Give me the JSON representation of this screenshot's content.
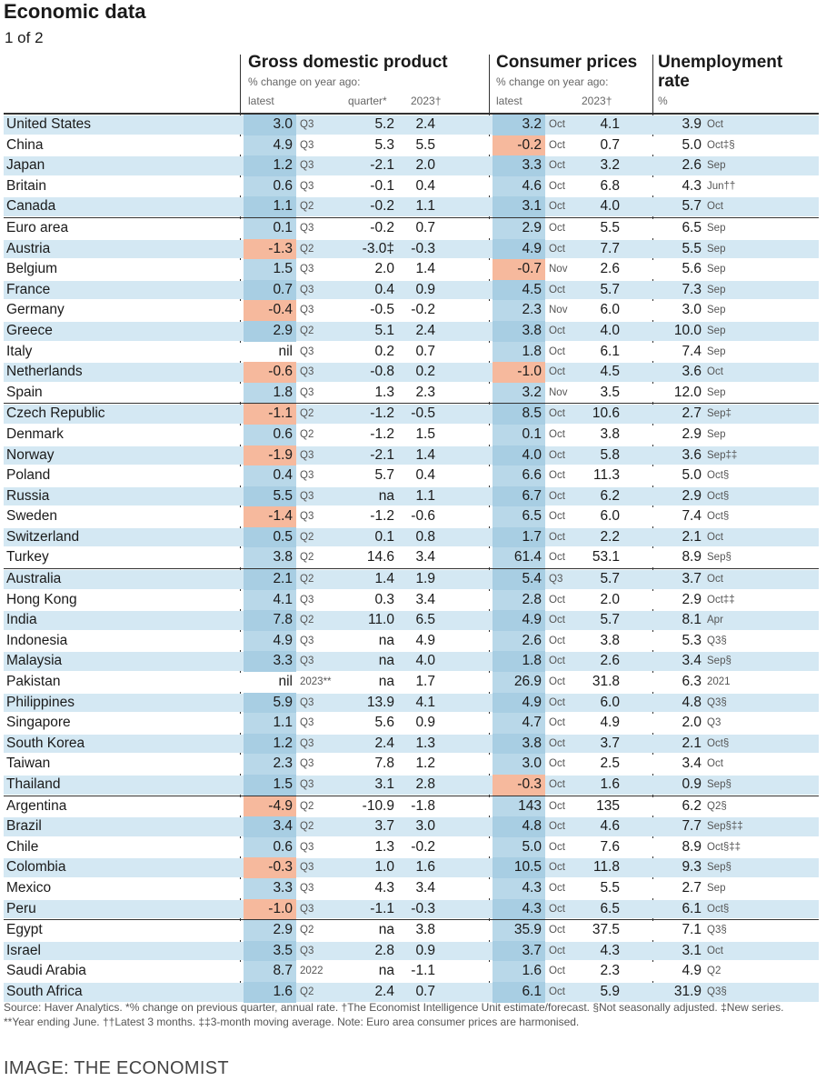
{
  "title": "Economic data",
  "subtitle": "1 of 2",
  "headers": {
    "gdp": "Gross domestic product",
    "gdp_sub": "% change on year ago:",
    "gdp_latest": "latest",
    "gdp_quarter": "quarter*",
    "gdp_2023": "2023†",
    "cpi": "Consumer prices",
    "cpi_sub": "% change on year ago:",
    "cpi_latest": "latest",
    "cpi_2023": "2023†",
    "unemp_line1": "Unemployment",
    "unemp_line2": "rate",
    "unemp_sub": "%"
  },
  "rows": [
    {
      "c": "United States",
      "g": "3.0",
      "gp": "Q3",
      "q": "5.2",
      "g23": "2.4",
      "p": "3.2",
      "pp": "Oct",
      "p23": "4.1",
      "u": "3.9",
      "up": "Oct"
    },
    {
      "c": "China",
      "g": "4.9",
      "gp": "Q3",
      "q": "5.3",
      "g23": "5.5",
      "p": "-0.2",
      "pp": "Oct",
      "p23": "0.7",
      "u": "5.0",
      "up": "Oct‡§"
    },
    {
      "c": "Japan",
      "g": "1.2",
      "gp": "Q3",
      "q": "-2.1",
      "g23": "2.0",
      "p": "3.3",
      "pp": "Oct",
      "p23": "3.2",
      "u": "2.6",
      "up": "Sep"
    },
    {
      "c": "Britain",
      "g": "0.6",
      "gp": "Q3",
      "q": "-0.1",
      "g23": "0.4",
      "p": "4.6",
      "pp": "Oct",
      "p23": "6.8",
      "u": "4.3",
      "up": "Jun††"
    },
    {
      "c": "Canada",
      "g": "1.1",
      "gp": "Q2",
      "q": "-0.2",
      "g23": "1.1",
      "p": "3.1",
      "pp": "Oct",
      "p23": "4.0",
      "u": "5.7",
      "up": "Oct"
    },
    {
      "c": "Euro area",
      "g": "0.1",
      "gp": "Q3",
      "q": "-0.2",
      "g23": "0.7",
      "p": "2.9",
      "pp": "Oct",
      "p23": "5.5",
      "u": "6.5",
      "up": "Sep"
    },
    {
      "c": "Austria",
      "g": "-1.3",
      "gp": "Q2",
      "q": "-3.0‡",
      "g23": "-0.3",
      "p": "4.9",
      "pp": "Oct",
      "p23": "7.7",
      "u": "5.5",
      "up": "Sep"
    },
    {
      "c": "Belgium",
      "g": "1.5",
      "gp": "Q3",
      "q": "2.0",
      "g23": "1.4",
      "p": "-0.7",
      "pp": "Nov",
      "p23": "2.6",
      "u": "5.6",
      "up": "Sep"
    },
    {
      "c": "France",
      "g": "0.7",
      "gp": "Q3",
      "q": "0.4",
      "g23": "0.9",
      "p": "4.5",
      "pp": "Oct",
      "p23": "5.7",
      "u": "7.3",
      "up": "Sep"
    },
    {
      "c": "Germany",
      "g": "-0.4",
      "gp": "Q3",
      "q": "-0.5",
      "g23": "-0.2",
      "p": "2.3",
      "pp": "Nov",
      "p23": "6.0",
      "u": "3.0",
      "up": "Sep"
    },
    {
      "c": "Greece",
      "g": "2.9",
      "gp": "Q2",
      "q": "5.1",
      "g23": "2.4",
      "p": "3.8",
      "pp": "Oct",
      "p23": "4.0",
      "u": "10.0",
      "up": "Sep"
    },
    {
      "c": "Italy",
      "g": "nil",
      "gp": "Q3",
      "q": "0.2",
      "g23": "0.7",
      "p": "1.8",
      "pp": "Oct",
      "p23": "6.1",
      "u": "7.4",
      "up": "Sep"
    },
    {
      "c": "Netherlands",
      "g": "-0.6",
      "gp": "Q3",
      "q": "-0.8",
      "g23": "0.2",
      "p": "-1.0",
      "pp": "Oct",
      "p23": "4.5",
      "u": "3.6",
      "up": "Oct"
    },
    {
      "c": "Spain",
      "g": "1.8",
      "gp": "Q3",
      "q": "1.3",
      "g23": "2.3",
      "p": "3.2",
      "pp": "Nov",
      "p23": "3.5",
      "u": "12.0",
      "up": "Sep"
    },
    {
      "c": "Czech Republic",
      "g": "-1.1",
      "gp": "Q2",
      "q": "-1.2",
      "g23": "-0.5",
      "p": "8.5",
      "pp": "Oct",
      "p23": "10.6",
      "u": "2.7",
      "up": "Sep‡"
    },
    {
      "c": "Denmark",
      "g": "0.6",
      "gp": "Q2",
      "q": "-1.2",
      "g23": "1.5",
      "p": "0.1",
      "pp": "Oct",
      "p23": "3.8",
      "u": "2.9",
      "up": "Sep"
    },
    {
      "c": "Norway",
      "g": "-1.9",
      "gp": "Q3",
      "q": "-2.1",
      "g23": "1.4",
      "p": "4.0",
      "pp": "Oct",
      "p23": "5.8",
      "u": "3.6",
      "up": "Sep‡‡"
    },
    {
      "c": "Poland",
      "g": "0.4",
      "gp": "Q3",
      "q": "5.7",
      "g23": "0.4",
      "p": "6.6",
      "pp": "Oct",
      "p23": "11.3",
      "u": "5.0",
      "up": "Oct§"
    },
    {
      "c": "Russia",
      "g": "5.5",
      "gp": "Q3",
      "q": "na",
      "g23": "1.1",
      "p": "6.7",
      "pp": "Oct",
      "p23": "6.2",
      "u": "2.9",
      "up": "Oct§"
    },
    {
      "c": "Sweden",
      "g": "-1.4",
      "gp": "Q3",
      "q": "-1.2",
      "g23": "-0.6",
      "p": "6.5",
      "pp": "Oct",
      "p23": "6.0",
      "u": "7.4",
      "up": "Oct§"
    },
    {
      "c": "Switzerland",
      "g": "0.5",
      "gp": "Q2",
      "q": "0.1",
      "g23": "0.8",
      "p": "1.7",
      "pp": "Oct",
      "p23": "2.2",
      "u": "2.1",
      "up": "Oct"
    },
    {
      "c": "Turkey",
      "g": "3.8",
      "gp": "Q2",
      "q": "14.6",
      "g23": "3.4",
      "p": "61.4",
      "pp": "Oct",
      "p23": "53.1",
      "u": "8.9",
      "up": "Sep§"
    },
    {
      "c": "Australia",
      "g": "2.1",
      "gp": "Q2",
      "q": "1.4",
      "g23": "1.9",
      "p": "5.4",
      "pp": "Q3",
      "p23": "5.7",
      "u": "3.7",
      "up": "Oct"
    },
    {
      "c": "Hong Kong",
      "g": "4.1",
      "gp": "Q3",
      "q": "0.3",
      "g23": "3.4",
      "p": "2.8",
      "pp": "Oct",
      "p23": "2.0",
      "u": "2.9",
      "up": "Oct‡‡"
    },
    {
      "c": "India",
      "g": "7.8",
      "gp": "Q2",
      "q": "11.0",
      "g23": "6.5",
      "p": "4.9",
      "pp": "Oct",
      "p23": "5.7",
      "u": "8.1",
      "up": "Apr"
    },
    {
      "c": "Indonesia",
      "g": "4.9",
      "gp": "Q3",
      "q": "na",
      "g23": "4.9",
      "p": "2.6",
      "pp": "Oct",
      "p23": "3.8",
      "u": "5.3",
      "up": "Q3§"
    },
    {
      "c": "Malaysia",
      "g": "3.3",
      "gp": "Q3",
      "q": "na",
      "g23": "4.0",
      "p": "1.8",
      "pp": "Oct",
      "p23": "2.6",
      "u": "3.4",
      "up": "Sep§"
    },
    {
      "c": "Pakistan",
      "g": "nil",
      "gp": "2023**",
      "q": "na",
      "g23": "1.7",
      "p": "26.9",
      "pp": "Oct",
      "p23": "31.8",
      "u": "6.3",
      "up": "2021"
    },
    {
      "c": "Philippines",
      "g": "5.9",
      "gp": "Q3",
      "q": "13.9",
      "g23": "4.1",
      "p": "4.9",
      "pp": "Oct",
      "p23": "6.0",
      "u": "4.8",
      "up": "Q3§"
    },
    {
      "c": "Singapore",
      "g": "1.1",
      "gp": "Q3",
      "q": "5.6",
      "g23": "0.9",
      "p": "4.7",
      "pp": "Oct",
      "p23": "4.9",
      "u": "2.0",
      "up": "Q3"
    },
    {
      "c": "South Korea",
      "g": "1.2",
      "gp": "Q3",
      "q": "2.4",
      "g23": "1.3",
      "p": "3.8",
      "pp": "Oct",
      "p23": "3.7",
      "u": "2.1",
      "up": "Oct§"
    },
    {
      "c": "Taiwan",
      "g": "2.3",
      "gp": "Q3",
      "q": "7.8",
      "g23": "1.2",
      "p": "3.0",
      "pp": "Oct",
      "p23": "2.5",
      "u": "3.4",
      "up": "Oct"
    },
    {
      "c": "Thailand",
      "g": "1.5",
      "gp": "Q3",
      "q": "3.1",
      "g23": "2.8",
      "p": "-0.3",
      "pp": "Oct",
      "p23": "1.6",
      "u": "0.9",
      "up": "Sep§"
    },
    {
      "c": "Argentina",
      "g": "-4.9",
      "gp": "Q2",
      "q": "-10.9",
      "g23": "-1.8",
      "p": "143",
      "pp": "Oct",
      "p23": "135",
      "u": "6.2",
      "up": "Q2§"
    },
    {
      "c": "Brazil",
      "g": "3.4",
      "gp": "Q2",
      "q": "3.7",
      "g23": "3.0",
      "p": "4.8",
      "pp": "Oct",
      "p23": "4.6",
      "u": "7.7",
      "up": "Sep§‡‡"
    },
    {
      "c": "Chile",
      "g": "0.6",
      "gp": "Q3",
      "q": "1.3",
      "g23": "-0.2",
      "p": "5.0",
      "pp": "Oct",
      "p23": "7.6",
      "u": "8.9",
      "up": "Oct§‡‡"
    },
    {
      "c": "Colombia",
      "g": "-0.3",
      "gp": "Q3",
      "q": "1.0",
      "g23": "1.6",
      "p": "10.5",
      "pp": "Oct",
      "p23": "11.8",
      "u": "9.3",
      "up": "Sep§"
    },
    {
      "c": "Mexico",
      "g": "3.3",
      "gp": "Q3",
      "q": "4.3",
      "g23": "3.4",
      "p": "4.3",
      "pp": "Oct",
      "p23": "5.5",
      "u": "2.7",
      "up": "Sep"
    },
    {
      "c": "Peru",
      "g": "-1.0",
      "gp": "Q3",
      "q": "-1.1",
      "g23": "-0.3",
      "p": "4.3",
      "pp": "Oct",
      "p23": "6.5",
      "u": "6.1",
      "up": "Oct§"
    },
    {
      "c": "Egypt",
      "g": "2.9",
      "gp": "Q2",
      "q": "na",
      "g23": "3.8",
      "p": "35.9",
      "pp": "Oct",
      "p23": "37.5",
      "u": "7.1",
      "up": "Q3§"
    },
    {
      "c": "Israel",
      "g": "3.5",
      "gp": "Q3",
      "q": "2.8",
      "g23": "0.9",
      "p": "3.7",
      "pp": "Oct",
      "p23": "4.3",
      "u": "3.1",
      "up": "Oct"
    },
    {
      "c": "Saudi Arabia",
      "g": "8.7",
      "gp": "2022",
      "q": "na",
      "g23": "-1.1",
      "p": "1.6",
      "pp": "Oct",
      "p23": "2.3",
      "u": "4.9",
      "up": "Q2"
    },
    {
      "c": "South Africa",
      "g": "1.6",
      "gp": "Q2",
      "q": "2.4",
      "g23": "0.7",
      "p": "6.1",
      "pp": "Oct",
      "p23": "5.9",
      "u": "31.9",
      "up": "Q3§"
    }
  ],
  "footnote": "Source: Haver Analytics. *% change on previous quarter, annual rate. †The Economist Intelligence Unit estimate/forecast. §Not seasonally adjusted. ‡New series. **Year ending June. ††Latest 3 months. ‡‡3-month moving average. Note: Euro area consumer prices are harmonised.",
  "credit": "IMAGE: THE ECONOMIST"
}
